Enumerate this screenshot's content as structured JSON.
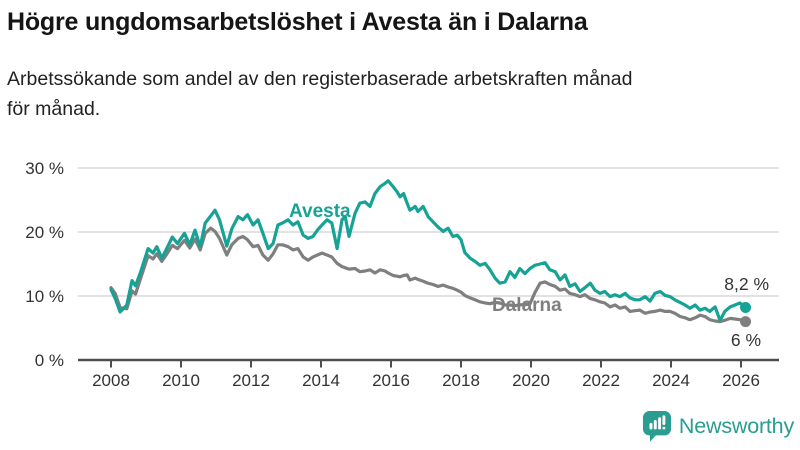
{
  "header": {
    "title": "Högre ungdomsarbetslöshet i Avesta än i Dalarna",
    "subtitle_line1": "Arbetssökande som andel av den registerbaserade arbetskraften månad",
    "subtitle_line2": "för månad."
  },
  "colors": {
    "avesta": "#17a296",
    "dalarna": "#7f7f7f",
    "title_text": "#151515",
    "axis_text": "#333333",
    "gridline": "#d9d9d9",
    "axis_line": "#4d4d4d",
    "value_label_text": "#333333",
    "background": "#ffffff",
    "logo_teal": "#2a9d90"
  },
  "chart_data": {
    "type": "line",
    "title": "Högre ungdomsarbetslöshet i Avesta än i Dalarna",
    "subtitle": "Arbetssökande som andel av den registerbaserade arbetskraften månad för månad.",
    "unit": "%",
    "grid": "horizontal",
    "legend": "inline-labels",
    "ylim": [
      0,
      30
    ],
    "xlim": [
      2008,
      2026.3
    ],
    "ytick_values": [
      0,
      10,
      20,
      30
    ],
    "ytick_labels": [
      "0 %",
      "10 %",
      "20 %",
      "30 %"
    ],
    "xtick_values": [
      2008,
      2010,
      2012,
      2014,
      2016,
      2018,
      2020,
      2022,
      2024,
      2026
    ],
    "xtick_labels": [
      "2008",
      "2010",
      "2012",
      "2014",
      "2016",
      "2018",
      "2020",
      "2022",
      "2024",
      "2026"
    ],
    "x": [
      2008.0,
      2008.12,
      2008.26,
      2008.45,
      2008.6,
      2008.7,
      2008.85,
      2009.06,
      2009.2,
      2009.31,
      2009.45,
      2009.6,
      2009.75,
      2009.9,
      2010.1,
      2010.25,
      2010.4,
      2010.55,
      2010.69,
      2010.85,
      2010.97,
      2011.1,
      2011.31,
      2011.45,
      2011.63,
      2011.77,
      2011.9,
      2012.06,
      2012.2,
      2012.34,
      2012.49,
      2012.63,
      2012.77,
      2012.9,
      2013.06,
      2013.2,
      2013.34,
      2013.49,
      2013.63,
      2013.77,
      2013.9,
      2014.03,
      2014.17,
      2014.31,
      2014.46,
      2014.6,
      2014.69,
      2014.8,
      2014.97,
      2015.11,
      2015.26,
      2015.4,
      2015.54,
      2015.69,
      2015.83,
      2015.92,
      2016.06,
      2016.17,
      2016.26,
      2016.36,
      2016.46,
      2016.54,
      2016.69,
      2016.77,
      2016.92,
      2017.06,
      2017.2,
      2017.34,
      2017.49,
      2017.63,
      2017.77,
      2017.89,
      2018.0,
      2018.11,
      2018.26,
      2018.4,
      2018.54,
      2018.69,
      2018.83,
      2018.97,
      2019.11,
      2019.26,
      2019.4,
      2019.54,
      2019.68,
      2019.83,
      2019.97,
      2020.11,
      2020.26,
      2020.4,
      2020.54,
      2020.69,
      2020.83,
      2020.97,
      2021.11,
      2021.26,
      2021.4,
      2021.54,
      2021.69,
      2021.83,
      2021.97,
      2022.11,
      2022.26,
      2022.4,
      2022.54,
      2022.69,
      2022.83,
      2022.97,
      2023.11,
      2023.26,
      2023.4,
      2023.54,
      2023.69,
      2023.83,
      2023.97,
      2024.11,
      2024.26,
      2024.4,
      2024.54,
      2024.69,
      2024.83,
      2024.97,
      2025.11,
      2025.26,
      2025.4,
      2025.54,
      2025.69,
      2025.83,
      2025.97,
      2026.13
    ],
    "series": [
      {
        "name": "Dalarna",
        "color": "#7f7f7f",
        "end_label": "6 %",
        "values": [
          11.3,
          10.4,
          8.2,
          8.0,
          10.8,
          10.3,
          12.8,
          16.3,
          15.8,
          16.6,
          15.4,
          16.6,
          17.9,
          17.4,
          18.7,
          17.5,
          18.9,
          17.2,
          19.8,
          20.6,
          20.1,
          19.0,
          16.4,
          18.0,
          19.0,
          19.3,
          18.8,
          17.7,
          17.9,
          16.4,
          15.6,
          16.6,
          18.0,
          18.0,
          17.7,
          17.2,
          17.4,
          16.1,
          15.6,
          16.1,
          16.4,
          16.7,
          16.4,
          16.1,
          15.1,
          14.6,
          14.4,
          14.2,
          14.3,
          13.8,
          13.9,
          14.1,
          13.6,
          14.1,
          13.9,
          13.6,
          13.2,
          13.1,
          13.0,
          13.2,
          13.3,
          12.5,
          12.8,
          12.6,
          12.3,
          12.0,
          11.8,
          11.5,
          11.7,
          11.4,
          11.2,
          10.9,
          10.6,
          10.1,
          9.7,
          9.4,
          9.1,
          8.9,
          8.8,
          9.0,
          8.9,
          8.6,
          8.6,
          8.5,
          8.6,
          8.7,
          8.8,
          10.5,
          12.0,
          12.2,
          11.8,
          11.5,
          10.9,
          11.1,
          10.4,
          10.2,
          9.9,
          10.2,
          9.6,
          9.4,
          9.1,
          8.9,
          8.3,
          8.6,
          8.1,
          8.3,
          7.6,
          7.7,
          7.8,
          7.3,
          7.5,
          7.6,
          7.8,
          7.6,
          7.6,
          7.3,
          6.8,
          6.6,
          6.3,
          6.6,
          7.0,
          6.8,
          6.3,
          6.1,
          6.0,
          6.2,
          6.5,
          6.4,
          6.3,
          6.0
        ]
      },
      {
        "name": "Avesta",
        "color": "#17a296",
        "end_label": "8,2 %",
        "values": [
          11.0,
          9.6,
          7.5,
          8.6,
          12.4,
          11.6,
          13.8,
          17.4,
          16.7,
          17.7,
          15.9,
          17.5,
          19.2,
          18.2,
          19.8,
          18.0,
          20.3,
          17.7,
          21.4,
          22.5,
          23.4,
          21.9,
          17.8,
          20.5,
          22.4,
          21.9,
          22.7,
          21.1,
          21.9,
          19.8,
          17.4,
          18.2,
          21.1,
          21.4,
          21.9,
          21.1,
          21.6,
          19.5,
          19.0,
          19.3,
          20.3,
          21.1,
          21.9,
          21.4,
          17.4,
          21.9,
          22.4,
          19.3,
          22.9,
          24.5,
          24.7,
          24.0,
          26.0,
          27.1,
          27.6,
          28.0,
          27.1,
          26.3,
          25.5,
          26.0,
          24.5,
          23.4,
          24.0,
          23.2,
          24.0,
          22.4,
          21.6,
          20.8,
          20.1,
          20.6,
          19.3,
          19.5,
          18.8,
          16.8,
          15.9,
          15.4,
          14.8,
          15.1,
          14.1,
          12.8,
          12.0,
          12.2,
          13.8,
          12.9,
          14.3,
          13.5,
          14.3,
          14.8,
          15.0,
          15.2,
          14.1,
          13.8,
          12.5,
          13.3,
          11.5,
          11.9,
          10.7,
          11.3,
          12.0,
          10.9,
          10.4,
          10.7,
          9.9,
          10.2,
          9.9,
          10.4,
          9.7,
          9.4,
          9.4,
          9.9,
          9.2,
          10.4,
          10.7,
          10.1,
          9.9,
          9.4,
          9.0,
          8.6,
          8.1,
          8.6,
          7.8,
          8.1,
          7.6,
          8.3,
          6.2,
          7.6,
          8.3,
          8.6,
          8.9,
          8.2
        ]
      }
    ]
  },
  "footer": {
    "brand": "Newsworthy"
  }
}
